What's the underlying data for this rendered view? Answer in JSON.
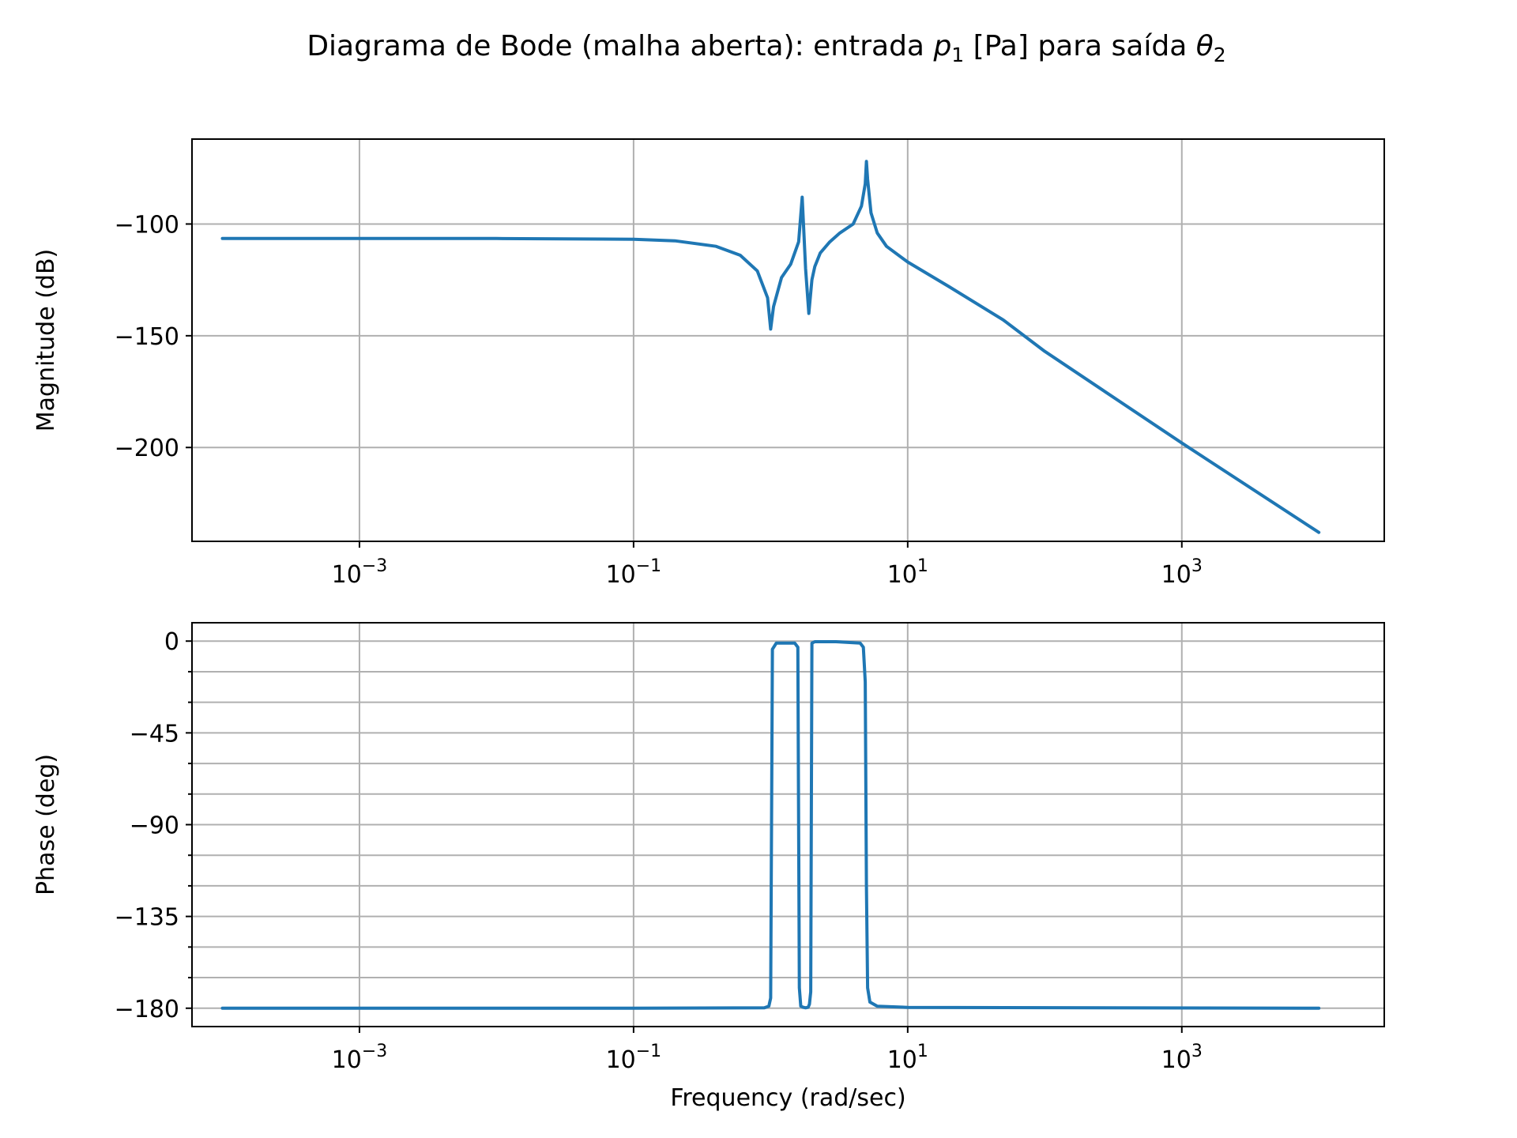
{
  "chart_data": [
    {
      "type": "line",
      "panel": "magnitude",
      "title": "Diagrama de Bode (malha aberta): entrada p₁ [Pa] para saída θ₂",
      "title_parts": {
        "prefix": "Diagrama de Bode (malha aberta): entrada ",
        "var1": "p",
        "var1_sub": "1",
        "middle": " [Pa] para saída ",
        "var2": "θ",
        "var2_sub": "2"
      },
      "ylabel": "Magnitude (dB)",
      "xlabel": "",
      "xscale": "log",
      "xlim": [
        6e-05,
        30000
      ],
      "ylim": [
        -242,
        -62
      ],
      "grid": true,
      "x_ticks": [
        {
          "value": 0.001,
          "base": "10",
          "exp": "−3"
        },
        {
          "value": 0.1,
          "base": "10",
          "exp": "−1"
        },
        {
          "value": 10,
          "base": "10",
          "exp": "1"
        },
        {
          "value": 1000,
          "base": "10",
          "exp": "3"
        }
      ],
      "y_ticks": [
        {
          "value": -100,
          "label": "−100"
        },
        {
          "value": -150,
          "label": "−150"
        },
        {
          "value": -200,
          "label": "−200"
        }
      ],
      "series": [
        {
          "color": "#1f77b4",
          "x": [
            0.0001,
            0.001,
            0.01,
            0.1,
            0.2,
            0.4,
            0.6,
            0.8,
            0.95,
            1.0,
            1.05,
            1.2,
            1.4,
            1.6,
            1.7,
            1.8,
            1.9,
            2.0,
            2.1,
            2.3,
            2.7,
            3.2,
            4.0,
            4.6,
            4.9,
            5.0,
            5.1,
            5.4,
            6.0,
            7.0,
            10.0,
            20.0,
            50.0,
            100.0,
            1000.0,
            10000.0
          ],
          "y": [
            -106.5,
            -106.5,
            -106.5,
            -106.8,
            -107.5,
            -110,
            -114,
            -121,
            -133,
            -147,
            -137,
            -124,
            -118,
            -108,
            -88,
            -120,
            -140,
            -125,
            -119,
            -113,
            -108,
            -104,
            -100,
            -92,
            -82,
            -72,
            -80,
            -95,
            -104,
            -110,
            -117,
            -128,
            -143,
            -157,
            -198,
            -238
          ]
        }
      ]
    },
    {
      "type": "line",
      "panel": "phase",
      "ylabel": "Phase (deg)",
      "xlabel": "Frequency (rad/sec)",
      "xscale": "log",
      "xlim": [
        6e-05,
        30000
      ],
      "ylim": [
        -189,
        9
      ],
      "grid": true,
      "minor_y_ticks": [
        -15,
        -30,
        -60,
        -75,
        -105,
        -120,
        -150,
        -165
      ],
      "x_ticks": [
        {
          "value": 0.001,
          "base": "10",
          "exp": "−3"
        },
        {
          "value": 0.1,
          "base": "10",
          "exp": "−1"
        },
        {
          "value": 10,
          "base": "10",
          "exp": "1"
        },
        {
          "value": 1000,
          "base": "10",
          "exp": "3"
        }
      ],
      "y_ticks": [
        {
          "value": 0,
          "label": "0"
        },
        {
          "value": -45,
          "label": "−45"
        },
        {
          "value": -90,
          "label": "−90"
        },
        {
          "value": -135,
          "label": "−135"
        },
        {
          "value": -180,
          "label": "−180"
        }
      ],
      "series": [
        {
          "color": "#1f77b4",
          "x": [
            0.0001,
            0.1,
            0.9,
            0.97,
            1.0,
            1.03,
            1.1,
            1.5,
            1.58,
            1.62,
            1.66,
            1.72,
            1.8,
            1.88,
            1.92,
            1.96,
            2.0,
            2.1,
            3.0,
            4.5,
            4.75,
            4.9,
            5.0,
            5.1,
            5.3,
            6.0,
            10.0,
            10000.0
          ],
          "y": [
            -180,
            -180,
            -179.8,
            -179,
            -175,
            -4,
            -1,
            -1,
            -3,
            -170,
            -179,
            -179.5,
            -179.8,
            -179.5,
            -178,
            -172,
            -1,
            -0.3,
            -0.3,
            -1,
            -3,
            -20,
            -120,
            -170,
            -177,
            -179,
            -179.6,
            -180
          ]
        }
      ]
    }
  ]
}
